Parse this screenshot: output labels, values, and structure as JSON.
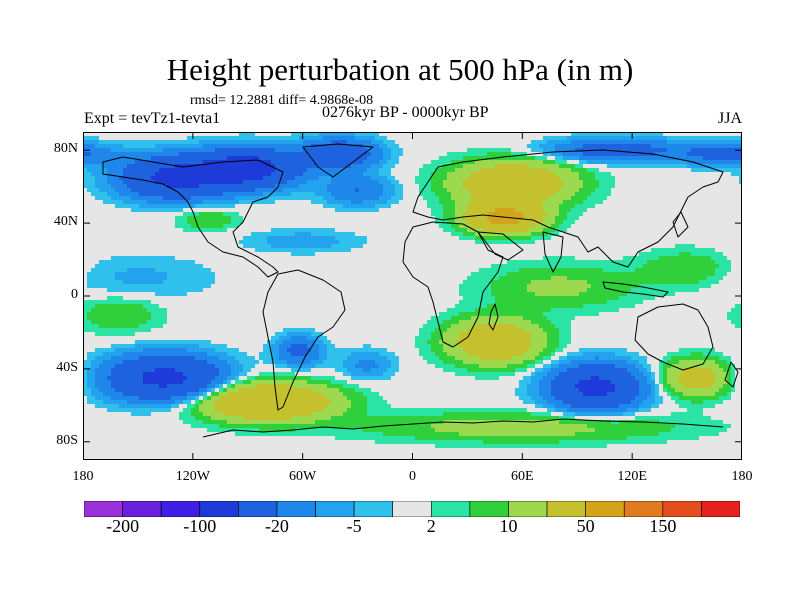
{
  "title": "Height perturbation at 500 hPa (in m)",
  "stats": "rmsd= 12.2881 diff= 4.9868e-08",
  "experiment": "Expt = tevTz1-tevta1",
  "period": "0276kyr BP - 0000kyr BP",
  "season": "JJA",
  "axes": {
    "y_ticks": [
      {
        "label": "80N",
        "lat": 80
      },
      {
        "label": "40N",
        "lat": 40
      },
      {
        "label": "0",
        "lat": 0
      },
      {
        "label": "40S",
        "lat": -40
      },
      {
        "label": "80S",
        "lat": -80
      }
    ],
    "x_ticks": [
      {
        "label": "180",
        "lon": -180
      },
      {
        "label": "120W",
        "lon": -120
      },
      {
        "label": "60W",
        "lon": -60
      },
      {
        "label": "0",
        "lon": 0
      },
      {
        "label": "60E",
        "lon": 60
      },
      {
        "label": "120E",
        "lon": 120
      },
      {
        "label": "180",
        "lon": 180
      }
    ],
    "lon_range": [
      -180,
      180
    ],
    "lat_range": [
      -90,
      90
    ]
  },
  "colorbar": {
    "colors": [
      "#9a31d8",
      "#6a1fdc",
      "#3f1ee6",
      "#1e3ad8",
      "#1f62e0",
      "#1f86ea",
      "#23a2ee",
      "#2fc0ec",
      "#e6e6e6",
      "#2ae3a5",
      "#2fd03c",
      "#9cd94e",
      "#c5c12e",
      "#d3a31b",
      "#e07b20",
      "#e44e1e",
      "#e61f1f"
    ],
    "labels": [
      {
        "text": "-200",
        "boundary": 1
      },
      {
        "text": "-100",
        "boundary": 3
      },
      {
        "text": "-20",
        "boundary": 5
      },
      {
        "text": "-5",
        "boundary": 7
      },
      {
        "text": "2",
        "boundary": 9
      },
      {
        "text": "10",
        "boundary": 11
      },
      {
        "text": "50",
        "boundary": 13
      },
      {
        "text": "150",
        "boundary": 15
      }
    ]
  },
  "chart_data": {
    "type": "heatmap",
    "title": "Height perturbation at 500 hPa (in m)",
    "variable": "500 hPa geopotential height perturbation",
    "units": "m",
    "season": "JJA",
    "xlim": [
      -180,
      180
    ],
    "ylim": [
      -90,
      90
    ],
    "levels": [
      -200,
      -150,
      -100,
      -50,
      -20,
      -10,
      -5,
      -2,
      2,
      5,
      10,
      20,
      50,
      100,
      150,
      200
    ],
    "features": [
      {
        "name": "north-pacific-low",
        "lon": -130,
        "lat": 65,
        "value": -60,
        "spread_lon": 28,
        "spread_lat": 11
      },
      {
        "name": "north-america-low",
        "lon": -90,
        "lat": 70,
        "value": -70,
        "spread_lon": 26,
        "spread_lat": 10
      },
      {
        "name": "greenland-low",
        "lon": -40,
        "lat": 78,
        "value": -40,
        "spread_lon": 20,
        "spread_lat": 8
      },
      {
        "name": "north-atlantic-low",
        "lon": -30,
        "lat": 58,
        "value": -20,
        "spread_lon": 18,
        "spread_lat": 8
      },
      {
        "name": "arctic-siberia-low",
        "lon": 110,
        "lat": 80,
        "value": -30,
        "spread_lon": 35,
        "spread_lat": 6
      },
      {
        "name": "arctic-pacific-low",
        "lon": 170,
        "lat": 78,
        "value": -25,
        "spread_lon": 25,
        "spread_lat": 6
      },
      {
        "name": "eurasia-high",
        "lon": 55,
        "lat": 62,
        "value": 40,
        "spread_lon": 32,
        "spread_lat": 12
      },
      {
        "name": "central-asia-high",
        "lon": 50,
        "lat": 43,
        "value": 60,
        "spread_lon": 20,
        "spread_lat": 8
      },
      {
        "name": "north-america-high",
        "lon": -112,
        "lat": 42,
        "value": 10,
        "spread_lon": 16,
        "spread_lat": 6
      },
      {
        "name": "subtropical-atlantic-low",
        "lon": -60,
        "lat": 30,
        "value": -8,
        "spread_lon": 30,
        "spread_lat": 6
      },
      {
        "name": "tropical-pacific-low",
        "lon": -150,
        "lat": 10,
        "value": -6,
        "spread_lon": 40,
        "spread_lat": 12
      },
      {
        "name": "tropical-indian-high",
        "lon": 80,
        "lat": 5,
        "value": 12,
        "spread_lon": 40,
        "spread_lat": 12
      },
      {
        "name": "west-pacific-high",
        "lon": 150,
        "lat": 15,
        "value": 10,
        "spread_lon": 25,
        "spread_lat": 10
      },
      {
        "name": "southern-africa-high",
        "lon": 45,
        "lat": -25,
        "value": 40,
        "spread_lon": 25,
        "spread_lat": 12
      },
      {
        "name": "south-atlantic-low",
        "lon": -25,
        "lat": -38,
        "value": -12,
        "spread_lon": 14,
        "spread_lat": 8
      },
      {
        "name": "south-america-low",
        "lon": -62,
        "lat": -30,
        "value": -25,
        "spread_lon": 12,
        "spread_lat": 8
      },
      {
        "name": "south-pacific-low",
        "lon": -135,
        "lat": -45,
        "value": -60,
        "spread_lon": 30,
        "spread_lat": 12
      },
      {
        "name": "southwest-pacific-high",
        "lon": -160,
        "lat": -10,
        "value": 10,
        "spread_lon": 22,
        "spread_lat": 10
      },
      {
        "name": "southeast-pacific-high",
        "lon": -80,
        "lat": -58,
        "value": 50,
        "spread_lon": 36,
        "spread_lat": 10
      },
      {
        "name": "southern-indian-low",
        "lon": 100,
        "lat": -50,
        "value": -60,
        "spread_lon": 24,
        "spread_lat": 12
      },
      {
        "name": "australia-high",
        "lon": 155,
        "lat": -45,
        "value": 30,
        "spread_lon": 18,
        "spread_lat": 10
      },
      {
        "name": "antarctica-high",
        "lon": 60,
        "lat": -72,
        "value": 15,
        "spread_lon": 80,
        "spread_lat": 8
      }
    ]
  }
}
